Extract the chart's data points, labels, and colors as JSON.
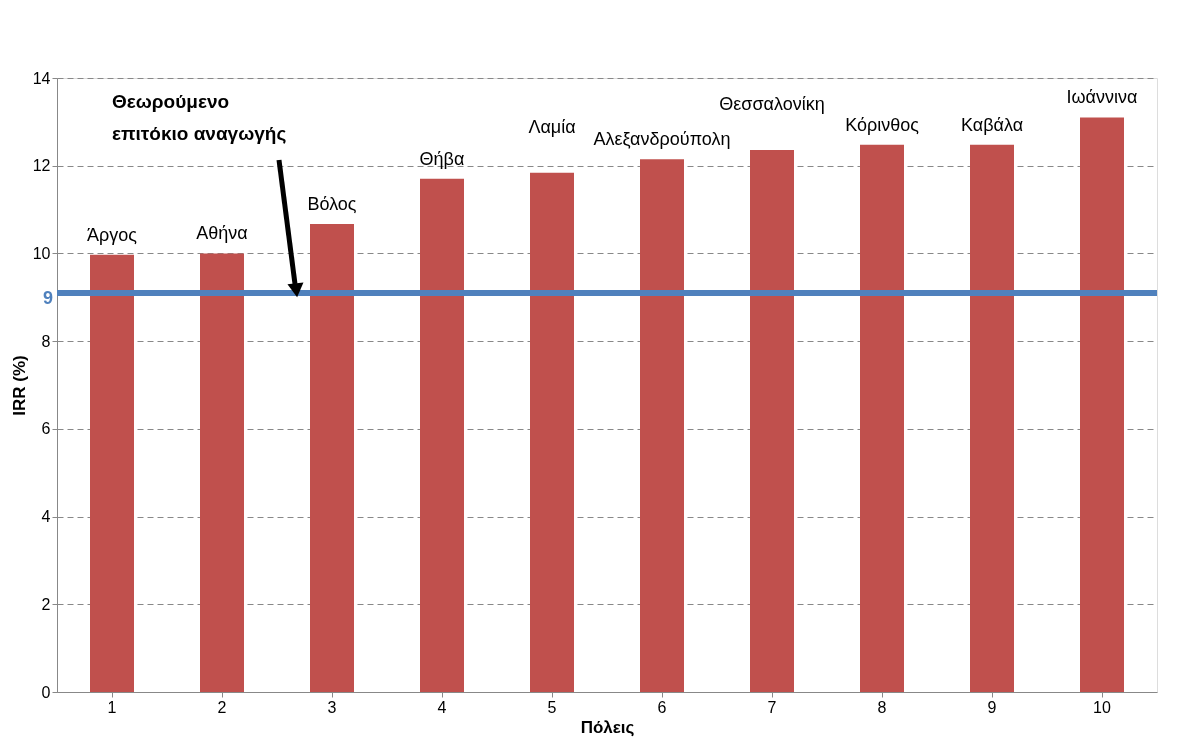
{
  "chart_data": {
    "type": "bar",
    "xlabel": "Πόλεις",
    "ylabel": "IRR (%)",
    "categories": [
      "1",
      "2",
      "3",
      "4",
      "5",
      "6",
      "7",
      "8",
      "9",
      "10"
    ],
    "series": [
      {
        "color": "#c0504d",
        "values": [
          9.97,
          10.0,
          10.67,
          11.7,
          11.84,
          12.15,
          12.36,
          12.48,
          12.48,
          13.1
        ]
      }
    ],
    "ylim": [
      0,
      14
    ],
    "yticks": [
      0,
      2,
      4,
      6,
      8,
      10,
      12,
      14
    ],
    "grid": "y",
    "ref_lines": [
      {
        "axis": "y",
        "value": 9.1,
        "label": "9",
        "color": "#4f81bd"
      }
    ],
    "annotations": [
      {
        "text": "Άργος",
        "x": "1",
        "y": 9.97
      },
      {
        "text": "Αθήνα",
        "x": "2",
        "y": 10.0
      },
      {
        "text": "Βόλος",
        "x": "3",
        "y": 10.67
      },
      {
        "text": "Θήβα",
        "x": "4",
        "y": 11.7
      },
      {
        "text": "Λαμία",
        "x": "5",
        "y": 11.84
      },
      {
        "text": "Αλεξανδρούπολη",
        "x": "6",
        "y": 12.15
      },
      {
        "text": "Θεσσαλονίκη",
        "x": "7",
        "y": 12.36
      },
      {
        "text": "Κόρινθος",
        "x": "8",
        "y": 12.48
      },
      {
        "text": "Καβάλα",
        "x": "9",
        "y": 12.48
      },
      {
        "text": "Ιωάννινα",
        "x": "10",
        "y": 13.1
      },
      "Θεωρούμενο επιτόκιο αναγωγής"
    ]
  }
}
